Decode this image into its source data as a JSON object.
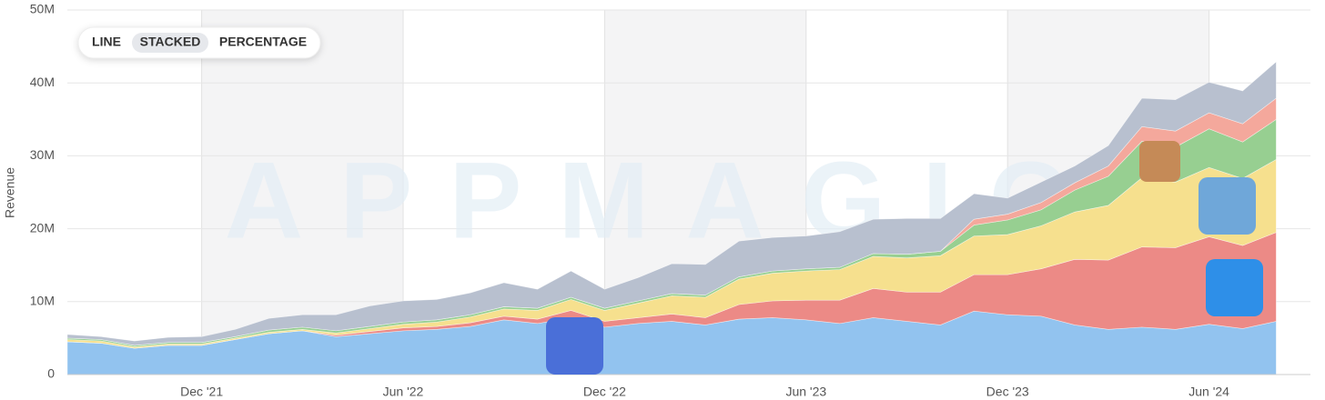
{
  "controls": {
    "options": [
      "LINE",
      "STACKED",
      "PERCENTAGE"
    ],
    "active": 1
  },
  "watermark": "APPMAGIC",
  "chart_data": {
    "type": "stacked-area",
    "y_label": "Revenue",
    "categories": [
      null,
      null,
      null,
      null,
      "Dec '21",
      null,
      null,
      null,
      null,
      null,
      "Jun '22",
      null,
      null,
      null,
      null,
      null,
      "Dec '22",
      null,
      null,
      null,
      null,
      null,
      "Jun '23",
      null,
      null,
      null,
      null,
      null,
      "Dec '23",
      null,
      null,
      null,
      null,
      null,
      "Jun '24",
      null,
      null
    ],
    "ylim": [
      0,
      50000000
    ],
    "yticks": [
      0,
      {
        "value": 10000000,
        "label": "10M"
      },
      {
        "value": 20000000,
        "label": "20M"
      },
      {
        "value": 30000000,
        "label": "30M"
      },
      {
        "value": 40000000,
        "label": "40M"
      },
      {
        "value": 50000000,
        "label": "50M"
      }
    ],
    "grid": true,
    "series": [
      {
        "color": "#92c3ef",
        "values": [
          4500000,
          4300000,
          3600000,
          4000000,
          4000000,
          4800000,
          5600000,
          6000000,
          5200000,
          5600000,
          6000000,
          6200000,
          6600000,
          7500000,
          7000000,
          7800000,
          6500000,
          7000000,
          7300000,
          6800000,
          7600000,
          7800000,
          7500000,
          7000000,
          7800000,
          7300000,
          6800000,
          8700000,
          8200000,
          8000000,
          6800000,
          6200000,
          6500000,
          6200000,
          6900000,
          6300000,
          7300000
        ]
      },
      {
        "color": "#ec8a86",
        "values": [
          0,
          0,
          0,
          0,
          0,
          0,
          0,
          0,
          200000,
          300000,
          400000,
          400000,
          500000,
          500000,
          600000,
          1000000,
          800000,
          800000,
          1000000,
          1000000,
          2000000,
          2300000,
          2700000,
          3200000,
          4000000,
          4000000,
          4500000,
          5000000,
          5500000,
          6500000,
          9000000,
          9500000,
          11000000,
          11200000,
          12000000,
          11400000,
          12200000
        ]
      },
      {
        "color": "#f6e08e",
        "values": [
          300000,
          300000,
          200000,
          200000,
          200000,
          200000,
          200000,
          200000,
          300000,
          400000,
          500000,
          600000,
          800000,
          1000000,
          1200000,
          1500000,
          1500000,
          2000000,
          2500000,
          2800000,
          3500000,
          3800000,
          4000000,
          4200000,
          4400000,
          4700000,
          5000000,
          5300000,
          5500000,
          5900000,
          6500000,
          7500000,
          9500000,
          9000000,
          9500000,
          9200000,
          10000000
        ]
      },
      {
        "color": "#97cf91",
        "values": [
          200000,
          200000,
          200000,
          200000,
          200000,
          200000,
          300000,
          300000,
          300000,
          300000,
          300000,
          300000,
          300000,
          300000,
          300000,
          300000,
          300000,
          300000,
          300000,
          300000,
          300000,
          300000,
          300000,
          300000,
          400000,
          500000,
          600000,
          1500000,
          2000000,
          2200000,
          3000000,
          4000000,
          5000000,
          4800000,
          5300000,
          5000000,
          5500000
        ]
      },
      {
        "color": "#f4a89c",
        "values": [
          0,
          0,
          0,
          0,
          0,
          0,
          0,
          0,
          0,
          0,
          0,
          0,
          0,
          0,
          0,
          0,
          0,
          0,
          0,
          0,
          0,
          0,
          0,
          0,
          0,
          0,
          0,
          800000,
          800000,
          1000000,
          1000000,
          1400000,
          2000000,
          2200000,
          2200000,
          2500000,
          2900000
        ]
      },
      {
        "color": "#b8c0cf",
        "values": [
          500000,
          400000,
          600000,
          700000,
          800000,
          1000000,
          1600000,
          1700000,
          2200000,
          2800000,
          2900000,
          2800000,
          3000000,
          3300000,
          2600000,
          3600000,
          2600000,
          3200000,
          4100000,
          4200000,
          4900000,
          4600000,
          4500000,
          4900000,
          4700000,
          4900000,
          4500000,
          3500000,
          2200000,
          2800000,
          2300000,
          2800000,
          3900000,
          4300000,
          4200000,
          4500000,
          5000000
        ]
      }
    ]
  }
}
